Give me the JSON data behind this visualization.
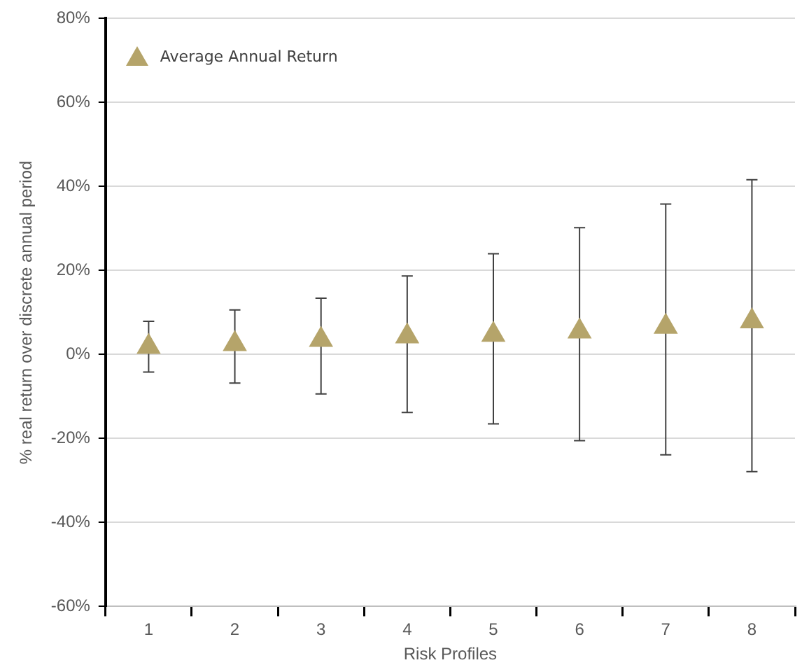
{
  "chart_data": {
    "type": "scatter",
    "xlabel": "Risk Profiles",
    "ylabel": "% real return over discrete annual period",
    "categories": [
      "1",
      "2",
      "3",
      "4",
      "5",
      "6",
      "7",
      "8"
    ],
    "series": [
      {
        "name": "Average Annual Return",
        "color": "#b5a46a",
        "values": [
          1.8,
          2.5,
          3.5,
          4.3,
          4.7,
          5.5,
          6.6,
          7.9
        ],
        "errors": [
          [
            -4.2,
            7.9
          ],
          [
            -6.8,
            10.6
          ],
          [
            -9.4,
            13.4
          ],
          [
            -13.8,
            18.7
          ],
          [
            -16.5,
            24.0
          ],
          [
            -20.5,
            30.2
          ],
          [
            -23.9,
            35.8
          ],
          [
            -27.9,
            41.6
          ]
        ]
      }
    ],
    "ylim": [
      -60,
      80
    ],
    "yticks": [
      {
        "value": -60,
        "label": "-60%"
      },
      {
        "value": -40,
        "label": "-40%"
      },
      {
        "value": -20,
        "label": "-20%"
      },
      {
        "value": 0,
        "label": "0%"
      },
      {
        "value": 20,
        "label": "20%"
      },
      {
        "value": 40,
        "label": "40%"
      },
      {
        "value": 60,
        "label": "60%"
      },
      {
        "value": 80,
        "label": "80%"
      }
    ],
    "grid": "y",
    "legend": "top left",
    "marker": "triangle"
  }
}
